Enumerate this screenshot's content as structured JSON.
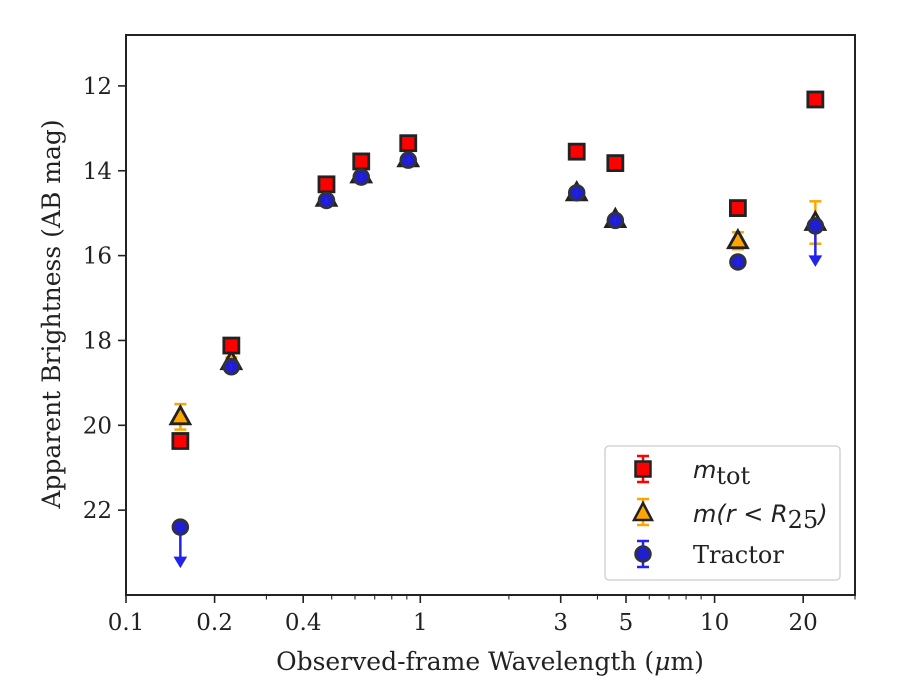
{
  "chart_data": {
    "type": "scatter",
    "title": "",
    "xlabel_main": "Observed-frame Wavelength (",
    "xlabel_mu": "μ",
    "xlabel_end": "m)",
    "ylabel": "Apparent Brightness (AB mag)",
    "x_scale": "log",
    "xlim": [
      0.1,
      30
    ],
    "ylim": [
      24,
      10.8
    ],
    "y_inverted": true,
    "x_ticks": [
      0.1,
      0.2,
      0.4,
      1,
      3,
      5,
      10,
      20
    ],
    "x_tick_labels": [
      "0.1",
      "0.2",
      "0.4",
      "1",
      "3",
      "5",
      "10",
      "20"
    ],
    "y_ticks": [
      12,
      14,
      16,
      18,
      20,
      22
    ],
    "y_tick_labels": [
      "12",
      "14",
      "16",
      "18",
      "20",
      "22"
    ],
    "legend_position": "lower-right",
    "grid": false,
    "series": [
      {
        "name": "m_tot",
        "marker": "square",
        "color": "#ff0000",
        "edge_color": "#222222",
        "error_color": "#ff0000",
        "points": [
          {
            "x": 0.153,
            "y": 20.37,
            "err": 0.05
          },
          {
            "x": 0.228,
            "y": 18.12,
            "err": 0.05
          },
          {
            "x": 0.48,
            "y": 14.32,
            "err": 0.03
          },
          {
            "x": 0.63,
            "y": 13.78,
            "err": 0.03
          },
          {
            "x": 0.91,
            "y": 13.35,
            "err": 0.03
          },
          {
            "x": 3.4,
            "y": 13.55,
            "err": 0.03
          },
          {
            "x": 4.6,
            "y": 13.82,
            "err": 0.03
          },
          {
            "x": 12.0,
            "y": 14.88,
            "err": 0.05
          },
          {
            "x": 22.0,
            "y": 12.32,
            "err": 0.05
          }
        ]
      },
      {
        "name": "m(r < R_25)",
        "marker": "triangle",
        "color": "#ffa500",
        "edge_color": "#222222",
        "error_color": "#ffa500",
        "points": [
          {
            "x": 0.153,
            "y": 19.8,
            "err": 0.3
          },
          {
            "x": 0.228,
            "y": 18.5,
            "err": 0.1
          },
          {
            "x": 0.48,
            "y": 14.65,
            "err": 0.05
          },
          {
            "x": 0.63,
            "y": 14.1,
            "err": 0.05
          },
          {
            "x": 0.91,
            "y": 13.72,
            "err": 0.05
          },
          {
            "x": 3.4,
            "y": 14.52,
            "err": 0.05
          },
          {
            "x": 4.6,
            "y": 15.15,
            "err": 0.05
          },
          {
            "x": 12.0,
            "y": 15.65,
            "err": 0.2
          },
          {
            "x": 22.0,
            "y": 15.22,
            "err": 0.5
          }
        ]
      },
      {
        "name": "Tractor",
        "marker": "circle",
        "color": "#1f1fd0",
        "edge_color": "#333333",
        "error_color": "#2222ee",
        "points": [
          {
            "x": 0.153,
            "y": 22.4,
            "err": 0.05,
            "upper_limit": true
          },
          {
            "x": 0.228,
            "y": 18.62,
            "err": 0.05
          },
          {
            "x": 0.48,
            "y": 14.7,
            "err": 0.03
          },
          {
            "x": 0.63,
            "y": 14.15,
            "err": 0.03
          },
          {
            "x": 0.91,
            "y": 13.75,
            "err": 0.03
          },
          {
            "x": 3.4,
            "y": 14.52,
            "err": 0.03
          },
          {
            "x": 4.6,
            "y": 15.17,
            "err": 0.03
          },
          {
            "x": 12.0,
            "y": 16.15,
            "err": 0.05
          },
          {
            "x": 22.0,
            "y": 15.3,
            "err": 0.05,
            "upper_limit": true
          }
        ]
      }
    ],
    "legend": [
      {
        "base": "m",
        "sub": "tot",
        "rest": ""
      },
      {
        "base": "m",
        "sub": "25",
        "rest": "(r < R"
      },
      {
        "base": "Tractor",
        "sub": "",
        "rest": ""
      }
    ]
  }
}
